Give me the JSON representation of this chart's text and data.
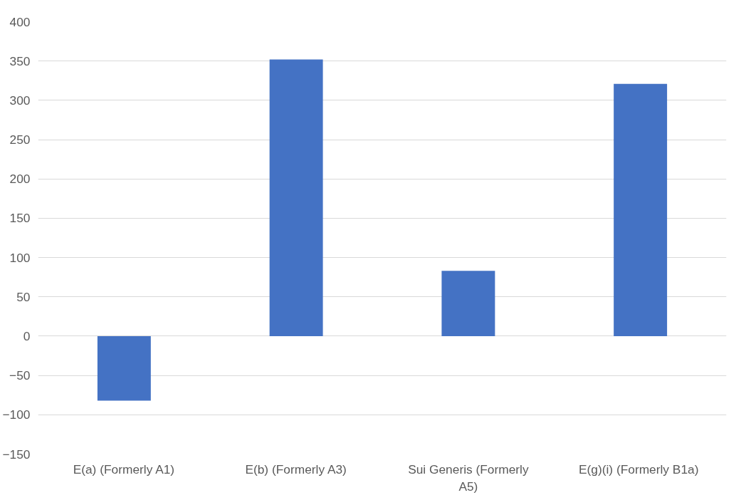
{
  "chart_data": {
    "type": "bar",
    "categories": [
      "E(a) (Formerly A1)",
      "E(b) (Formerly A3)",
      "Sui Generis (Formerly A5)",
      "E(g)(i)  (Formerly B1a)"
    ],
    "values": [
      -82,
      352,
      83,
      321
    ],
    "color": "#4472c4",
    "ylim": [
      -150,
      400
    ],
    "yticks": [
      -150,
      -100,
      -50,
      0,
      50,
      100,
      150,
      200,
      250,
      300,
      350,
      400
    ],
    "grid": "y"
  }
}
